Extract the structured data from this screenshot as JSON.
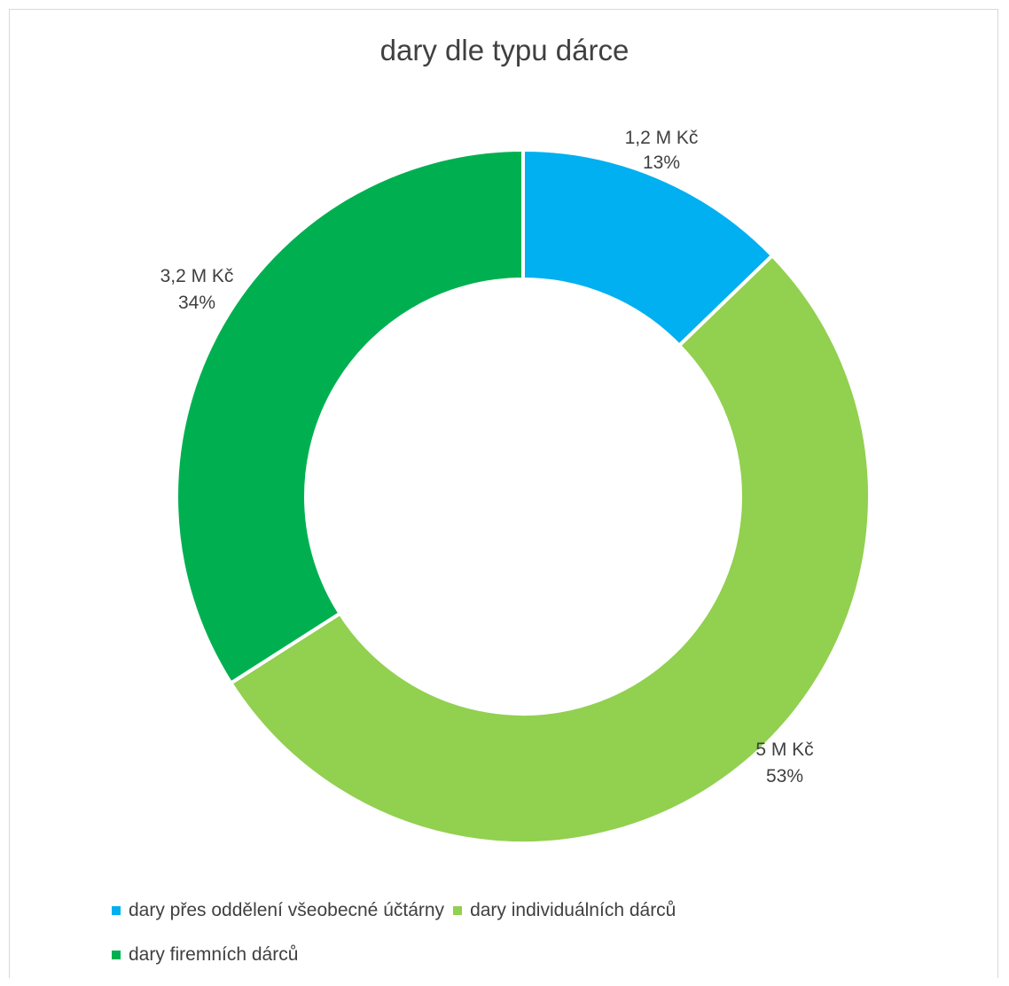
{
  "chart_data": {
    "type": "pie",
    "variant": "doughnut",
    "title": "dary dle typu dárce",
    "categories": [
      "dary přes oddělení všeobecné účtárny",
      "dary individuálních dárců",
      "dary firemních dárců"
    ],
    "values": [
      1.2,
      5.0,
      3.2
    ],
    "value_labels": [
      "1,2 M Kč",
      "5 M Kč",
      "3,2 M Kč"
    ],
    "percent_labels": [
      "13%",
      "53%",
      "34%"
    ],
    "colors": [
      "#00B0F0",
      "#92D050",
      "#00B050"
    ],
    "legend": "bottom"
  }
}
